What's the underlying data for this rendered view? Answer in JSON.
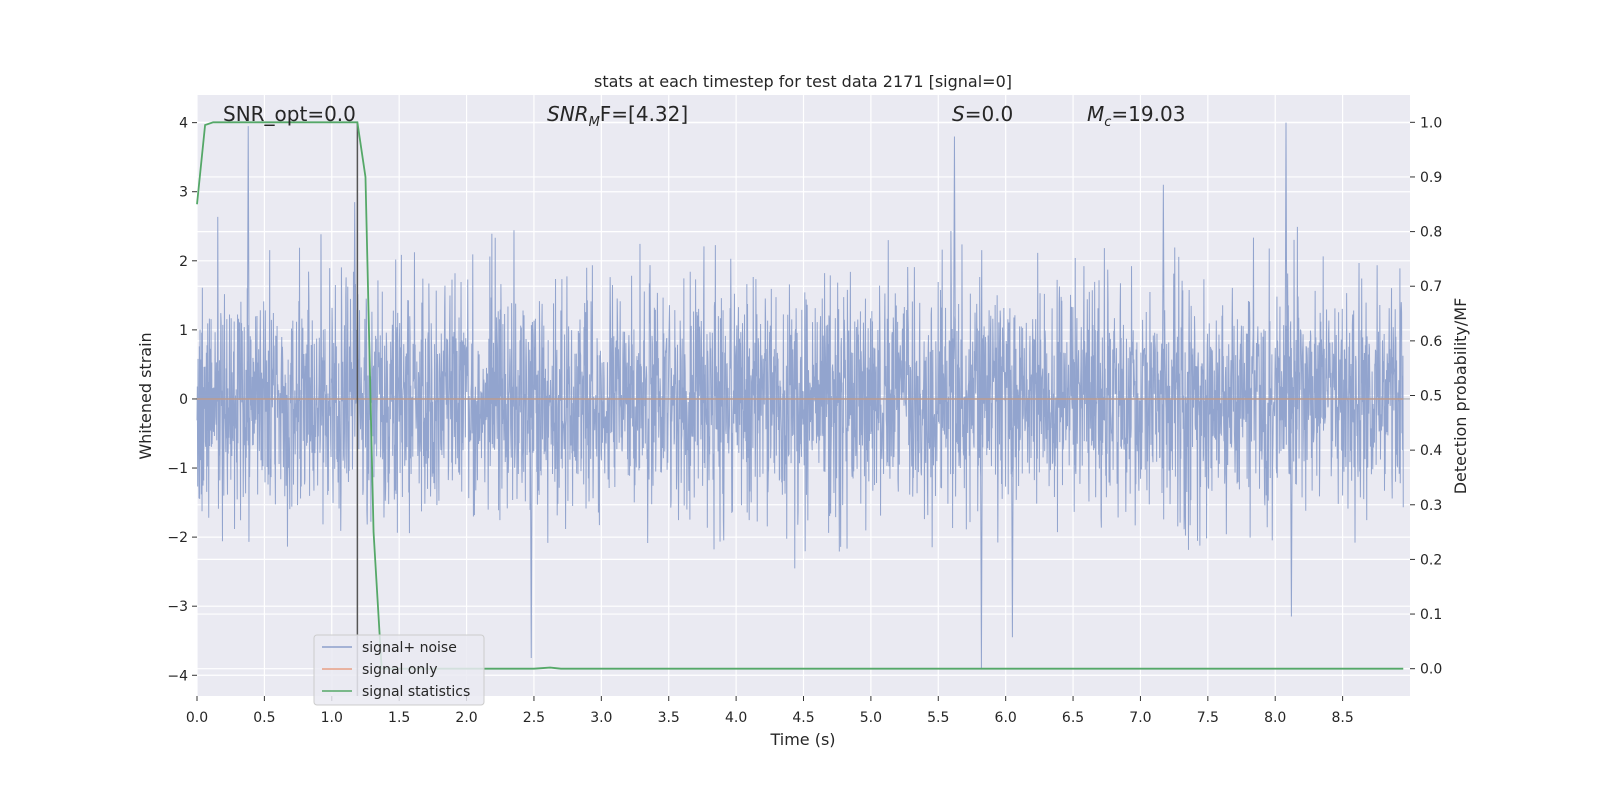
{
  "chart_data": {
    "type": "line",
    "title": "stats at each timestep for test data 2171 [signal=0]",
    "xlabel": "Time (s)",
    "ylabel_left": "Whitened strain",
    "ylabel_right": "Detection probability/MF",
    "xlim": [
      0,
      9.0
    ],
    "ylim_left": [
      -4.3,
      4.4
    ],
    "ylim_right": [
      -0.05,
      1.05
    ],
    "x_ticks": [
      "0.0",
      "0.5",
      "1.0",
      "1.5",
      "2.0",
      "2.5",
      "3.0",
      "3.5",
      "4.0",
      "4.5",
      "5.0",
      "5.5",
      "6.0",
      "6.5",
      "7.0",
      "7.5",
      "8.0",
      "8.5"
    ],
    "y_ticks_left": [
      "4",
      "3",
      "2",
      "1",
      "0",
      "−1",
      "−2",
      "−3",
      "−4"
    ],
    "y_ticks_right": [
      "1.0",
      "0.9",
      "0.8",
      "0.7",
      "0.6",
      "0.5",
      "0.4",
      "0.3",
      "0.2",
      "0.1",
      "0.0"
    ],
    "grid": true,
    "legend_position": "lower-left",
    "annotations": {
      "snr_opt": "SNR_opt=0.0",
      "snr_mf_prefix": "SNR",
      "snr_mf_sub": "M",
      "snr_mf_suffix": "F=[4.32]",
      "s_prefix": "S",
      "s_suffix": "=0.0",
      "mc_prefix": "M",
      "mc_sub": "c",
      "mc_suffix": "=19.03"
    },
    "vertical_marker_x": 1.19,
    "series": [
      {
        "name": "signal+ noise",
        "axis": "left",
        "color": "#8da0cb",
        "style": "noise",
        "envelope": {
          "typical_max": 1.8,
          "typical_min": -1.8,
          "peak_max": 4.0,
          "peak_min": -3.9
        },
        "notable_peaks": [
          [
            0.38,
            3.95
          ],
          [
            1.17,
            2.85
          ],
          [
            5.62,
            3.8
          ],
          [
            8.08,
            4.0
          ],
          [
            7.17,
            3.1
          ],
          [
            2.48,
            -3.75
          ],
          [
            5.82,
            -3.9
          ],
          [
            6.05,
            -3.45
          ],
          [
            8.12,
            -3.15
          ]
        ]
      },
      {
        "name": "signal only",
        "axis": "left",
        "color": "#e8a085",
        "x": [
          0,
          8.95
        ],
        "y": [
          0,
          0
        ]
      },
      {
        "name": "signal statistics",
        "axis": "right",
        "color": "#55a868",
        "x": [
          0,
          0.06,
          0.12,
          0.2,
          0.5,
          0.8,
          1.0,
          1.19,
          1.25,
          1.31,
          1.37,
          1.45,
          1.6,
          2.0,
          2.5,
          2.62,
          2.7,
          3.0,
          4.0,
          5.0,
          6.0,
          7.0,
          8.0,
          8.95
        ],
        "y": [
          0.85,
          0.995,
          1.0,
          1.0,
          1.0,
          1.0,
          1.0,
          1.0,
          0.9,
          0.25,
          0.0,
          0.0,
          0.0,
          0.0,
          0.0,
          0.002,
          0.0,
          0.0,
          0.0,
          0.0,
          0.0,
          0.0,
          0.0,
          0.0
        ]
      }
    ]
  }
}
